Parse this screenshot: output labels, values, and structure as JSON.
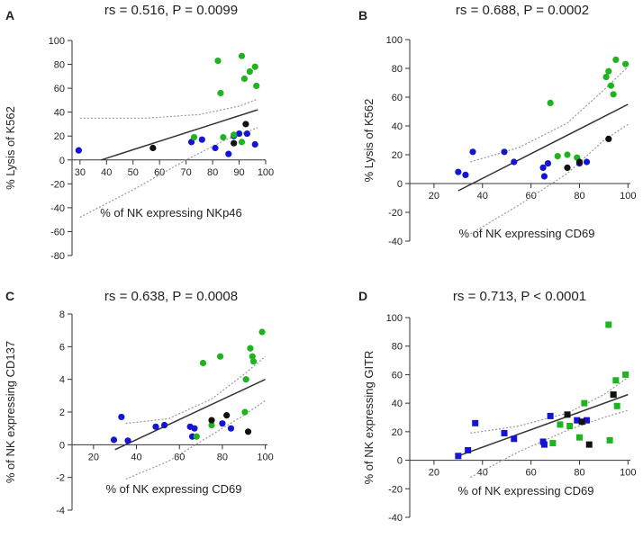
{
  "chart_data": [
    {
      "type": "scatter",
      "panel_label": "A",
      "title": "rs = 0.516, P = 0.0099",
      "xlabel": "% of NK expressing NKp46",
      "ylabel": "% Lysis of K562",
      "xlim": [
        27,
        100
      ],
      "ylim": [
        -80,
        100
      ],
      "xticks": [
        30,
        40,
        50,
        60,
        70,
        80,
        90,
        100
      ],
      "yticks": [
        -80,
        -60,
        -40,
        -20,
        0,
        20,
        40,
        60,
        80,
        100
      ],
      "x_axis_at_zero": true,
      "marker": "circle",
      "fit_line": [
        [
          38,
          0
        ],
        [
          97,
          42
        ]
      ],
      "ci_upper": [
        [
          30,
          35
        ],
        [
          55,
          35
        ],
        [
          75,
          38
        ],
        [
          90,
          45
        ],
        [
          97,
          51
        ]
      ],
      "ci_lower": [
        [
          30,
          -48
        ],
        [
          50,
          -25
        ],
        [
          70,
          0
        ],
        [
          85,
          17
        ],
        [
          97,
          27
        ]
      ],
      "series": [
        {
          "name": "blue",
          "color": "#1414d2",
          "points": [
            [
              29.5,
              8
            ],
            [
              72,
              15
            ],
            [
              76,
              17
            ],
            [
              81,
              10
            ],
            [
              86,
              5
            ],
            [
              88,
              20
            ],
            [
              90,
              22
            ],
            [
              93,
              22
            ],
            [
              96,
              13
            ]
          ]
        },
        {
          "name": "green",
          "color": "#1fb41f",
          "points": [
            [
              82,
              83
            ],
            [
              83,
              56
            ],
            [
              73,
              19
            ],
            [
              84,
              19
            ],
            [
              88,
              21
            ],
            [
              91,
              87
            ],
            [
              92,
              68
            ],
            [
              94,
              74
            ],
            [
              96,
              78
            ],
            [
              96.5,
              62
            ],
            [
              91,
              15
            ]
          ]
        },
        {
          "name": "black",
          "color": "#111111",
          "points": [
            [
              57.5,
              10
            ],
            [
              88,
              14
            ],
            [
              92.5,
              30
            ]
          ]
        }
      ]
    },
    {
      "type": "scatter",
      "panel_label": "B",
      "title": "rs = 0.688, P = 0.0002",
      "xlabel": "% of NK expressing CD69",
      "ylabel": "% Lysis of K562",
      "xlim": [
        10,
        101
      ],
      "ylim": [
        -40,
        100
      ],
      "xticks": [
        20,
        40,
        60,
        80,
        100
      ],
      "yticks": [
        -40,
        -20,
        0,
        20,
        40,
        60,
        80,
        100
      ],
      "x_axis_at_zero": true,
      "marker": "circle",
      "fit_line": [
        [
          30,
          -5
        ],
        [
          100,
          55
        ]
      ],
      "ci_upper": [
        [
          35,
          15
        ],
        [
          55,
          25
        ],
        [
          75,
          42
        ],
        [
          90,
          65
        ],
        [
          100,
          81
        ]
      ],
      "ci_lower": [
        [
          35,
          -35
        ],
        [
          55,
          -15
        ],
        [
          75,
          7
        ],
        [
          90,
          30
        ],
        [
          100,
          41
        ]
      ],
      "series": [
        {
          "name": "blue",
          "color": "#1414d2",
          "points": [
            [
              30,
              8
            ],
            [
              33,
              6
            ],
            [
              36,
              22
            ],
            [
              49,
              22
            ],
            [
              53,
              15
            ],
            [
              65,
              11
            ],
            [
              65.5,
              5
            ],
            [
              67,
              14
            ],
            [
              80,
              14
            ],
            [
              83,
              15
            ]
          ]
        },
        {
          "name": "green",
          "color": "#1fb41f",
          "points": [
            [
              68,
              56
            ],
            [
              71,
              19
            ],
            [
              75,
              20
            ],
            [
              79,
              18
            ],
            [
              91,
              74
            ],
            [
              92,
              78
            ],
            [
              93,
              68
            ],
            [
              94,
              62
            ],
            [
              95,
              86
            ],
            [
              99,
              83
            ]
          ]
        },
        {
          "name": "black",
          "color": "#111111",
          "points": [
            [
              75,
              11
            ],
            [
              80,
              15
            ],
            [
              92,
              31
            ]
          ]
        }
      ]
    },
    {
      "type": "scatter",
      "panel_label": "C",
      "title": "rs = 0.638, P = 0.0008",
      "xlabel": "% of NK expressing CD69",
      "ylabel": "% of NK expressing CD137",
      "xlim": [
        10,
        101
      ],
      "ylim": [
        -4,
        8
      ],
      "xticks": [
        20,
        40,
        60,
        80,
        100
      ],
      "yticks": [
        -4,
        -2,
        0,
        2,
        4,
        6,
        8
      ],
      "x_axis_at_zero": true,
      "marker": "circle",
      "fit_line": [
        [
          30,
          -0.3
        ],
        [
          100,
          4.0
        ]
      ],
      "ci_upper": [
        [
          35,
          1.3
        ],
        [
          55,
          1.6
        ],
        [
          75,
          2.8
        ],
        [
          90,
          4.3
        ],
        [
          100,
          5.4
        ]
      ],
      "ci_lower": [
        [
          35,
          -2.1
        ],
        [
          55,
          -1.0
        ],
        [
          75,
          0.6
        ],
        [
          90,
          1.8
        ],
        [
          100,
          2.7
        ]
      ],
      "series": [
        {
          "name": "blue",
          "color": "#1414d2",
          "points": [
            [
              29.5,
              0.3
            ],
            [
              33,
              1.7
            ],
            [
              36,
              0.25
            ],
            [
              49,
              1.1
            ],
            [
              53,
              1.2
            ],
            [
              65,
              1.1
            ],
            [
              66,
              0.5
            ],
            [
              67,
              1.0
            ],
            [
              80,
              1.3
            ],
            [
              84,
              1.0
            ]
          ]
        },
        {
          "name": "green",
          "color": "#1fb41f",
          "points": [
            [
              71,
              5.0
            ],
            [
              79,
              5.4
            ],
            [
              91,
              4.0
            ],
            [
              90.5,
              2.0
            ],
            [
              93,
              5.9
            ],
            [
              94,
              5.4
            ],
            [
              94.5,
              5.1
            ],
            [
              98.5,
              6.9
            ],
            [
              68,
              0.5
            ],
            [
              75,
              1.2
            ]
          ]
        },
        {
          "name": "black",
          "color": "#111111",
          "points": [
            [
              75,
              1.5
            ],
            [
              82,
              1.8
            ],
            [
              92,
              0.8
            ]
          ]
        }
      ]
    },
    {
      "type": "scatter",
      "panel_label": "D",
      "title": "rs = 0.713, P < 0.0001",
      "xlabel": "% of NK expressing CD69",
      "ylabel": "% of NK expressing GITR",
      "xlim": [
        10,
        101
      ],
      "ylim": [
        -40,
        100
      ],
      "xticks": [
        20,
        40,
        60,
        80,
        100
      ],
      "yticks": [
        -40,
        -20,
        0,
        20,
        40,
        60,
        80,
        100
      ],
      "x_axis_at_zero": true,
      "marker": "square",
      "fit_line": [
        [
          30,
          3
        ],
        [
          100,
          46
        ]
      ],
      "ci_upper": [
        [
          35,
          19
        ],
        [
          55,
          24
        ],
        [
          75,
          33
        ],
        [
          90,
          46
        ],
        [
          100,
          58
        ]
      ],
      "ci_lower": [
        [
          35,
          -12
        ],
        [
          55,
          6
        ],
        [
          75,
          21
        ],
        [
          90,
          30
        ],
        [
          100,
          35
        ]
      ],
      "series": [
        {
          "name": "blue",
          "color": "#1414d2",
          "points": [
            [
              30,
              3
            ],
            [
              34,
              7
            ],
            [
              37,
              26
            ],
            [
              49,
              19
            ],
            [
              53,
              15
            ],
            [
              65,
              13
            ],
            [
              65.5,
              11
            ],
            [
              68,
              31
            ],
            [
              79,
              28
            ],
            [
              83,
              28
            ]
          ]
        },
        {
          "name": "green",
          "color": "#1fb41f",
          "points": [
            [
              69,
              12
            ],
            [
              72,
              25
            ],
            [
              76,
              24
            ],
            [
              80,
              16
            ],
            [
              82,
              40
            ],
            [
              92,
              95
            ],
            [
              92.5,
              14
            ],
            [
              94,
              46
            ],
            [
              95,
              56
            ],
            [
              95.5,
              38
            ],
            [
              99,
              60
            ]
          ]
        },
        {
          "name": "black",
          "color": "#111111",
          "points": [
            [
              75,
              32
            ],
            [
              81,
              27
            ],
            [
              84,
              11
            ],
            [
              94,
              46
            ]
          ]
        }
      ]
    }
  ]
}
